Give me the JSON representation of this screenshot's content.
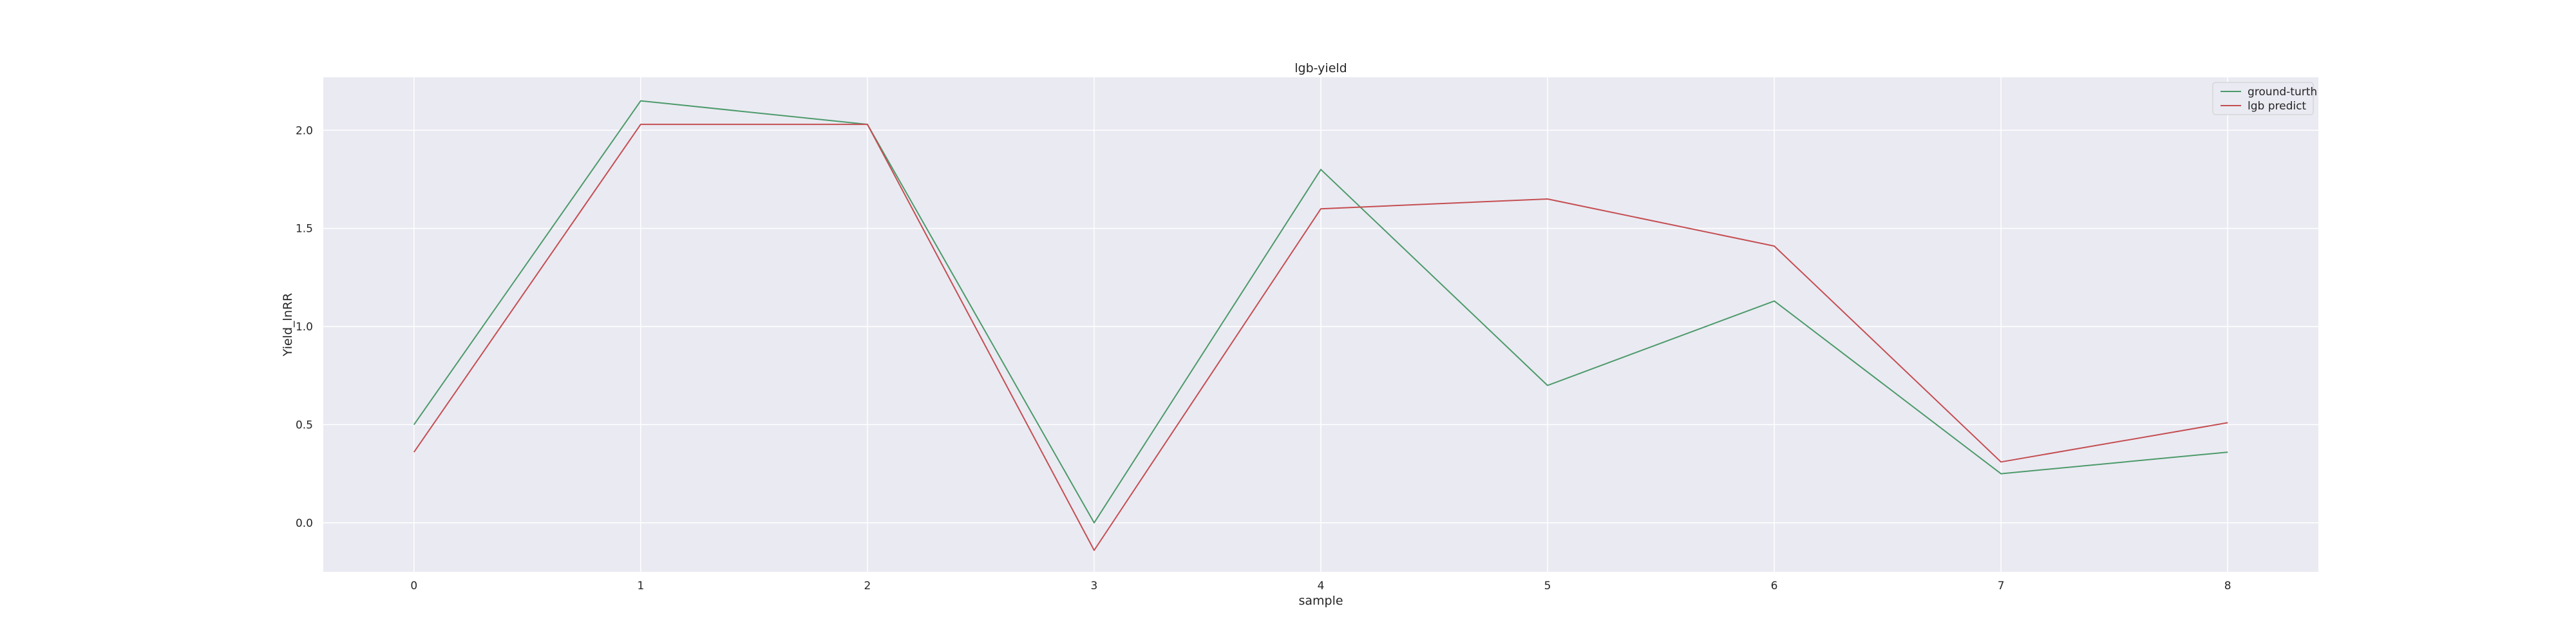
{
  "chart_data": {
    "type": "line",
    "title": "lgb-yield",
    "xlabel": "sample",
    "ylabel": "Yield_lnRR",
    "x": [
      0,
      1,
      2,
      3,
      4,
      5,
      6,
      7,
      8
    ],
    "xticks": [
      "0",
      "1",
      "2",
      "3",
      "4",
      "5",
      "6",
      "7",
      "8"
    ],
    "yticks": [
      "0.0",
      "0.5",
      "1.0",
      "1.5",
      "2.0"
    ],
    "ylim": [
      -0.25,
      2.27
    ],
    "xlim": [
      -0.4,
      8.4
    ],
    "grid": true,
    "legend_position": "top-right",
    "series": [
      {
        "name": "ground-turth",
        "color": "#4c9a6a",
        "values": [
          0.5,
          2.15,
          2.03,
          0.0,
          1.8,
          0.7,
          1.13,
          0.25,
          0.36
        ]
      },
      {
        "name": "lgb predict",
        "color": "#c44e52",
        "values": [
          0.36,
          2.03,
          2.03,
          -0.14,
          1.6,
          1.65,
          1.41,
          0.31,
          0.51
        ]
      }
    ]
  }
}
